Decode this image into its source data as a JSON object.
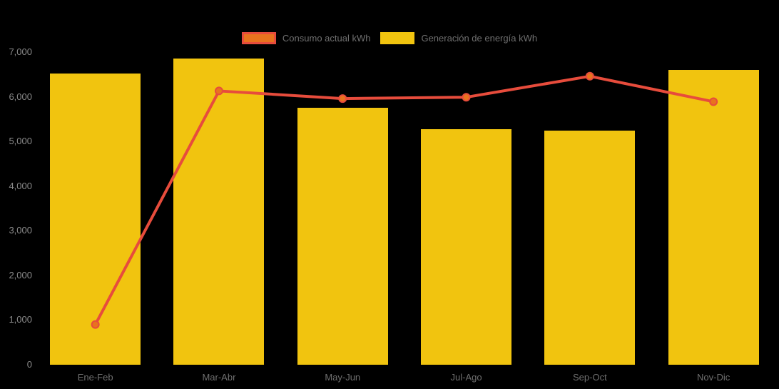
{
  "chart_data": {
    "type": "combo",
    "categories": [
      "Ene-Feb",
      "Mar-Abr",
      "May-Jun",
      "Jul-Ago",
      "Sep-Oct",
      "Nov-Dic"
    ],
    "series": [
      {
        "name": "Consumo actual kWh",
        "type": "line",
        "color": "#e74c3c",
        "marker_color": "#e8731e",
        "values": [
          900,
          6130,
          5960,
          5990,
          6460,
          5890
        ]
      },
      {
        "name": "Generación de energía kWh",
        "type": "bar",
        "color": "#f1c40f",
        "values": [
          6520,
          6860,
          5760,
          5270,
          5240,
          6600
        ]
      }
    ],
    "ylim": [
      0,
      7000
    ],
    "ytick_labels": [
      "0",
      "1,000",
      "2,000",
      "3,000",
      "4,000",
      "5,000",
      "6,000",
      "7,000"
    ],
    "grid": false,
    "legend_position": "top-center",
    "background": "#000000",
    "ytick_text_color": "#8a8a8a",
    "xtick_text_color": "#6f6f6f",
    "legend_text_color": "#6f6f6f"
  }
}
